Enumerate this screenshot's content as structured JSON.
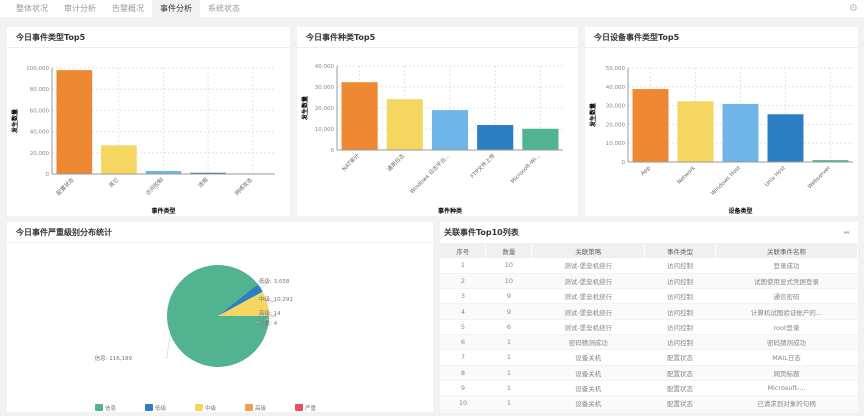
{
  "tabs": [
    "整体状况",
    "审计分析",
    "告警概况",
    "事件分析",
    "系统状态"
  ],
  "active_tab": 3,
  "charts": [
    {
      "title": "今日事件类型Top5",
      "type": "bar",
      "ylabel": "发生数量",
      "xlabel": "事件类型",
      "ylim": [
        0,
        100000
      ],
      "ticks": [
        0,
        20000,
        40000,
        60000,
        80000,
        100000
      ],
      "categories": [
        "配置状态",
        "其它",
        "访问控制",
        "违规",
        "网络攻击"
      ],
      "values": [
        98000,
        27000,
        2800,
        1200,
        100
      ],
      "colors": [
        "#ee8833",
        "#f5d660",
        "#6fb5e8",
        "#2d7fc4",
        "#52b391"
      ]
    },
    {
      "title": "今日事件种类Top5",
      "type": "bar",
      "ylabel": "发生数量",
      "xlabel": "事件种类",
      "ylim": [
        0,
        40000
      ],
      "ticks": [
        0,
        10000,
        20000,
        30000,
        40000
      ],
      "categories": [
        "NAT审计",
        "通用日志",
        "Windows 日志平台...",
        "FTP文件上传",
        "Microsoft-Wi..."
      ],
      "values": [
        32300,
        24200,
        19000,
        11900,
        10100
      ],
      "colors": [
        "#ee8833",
        "#f5d660",
        "#6fb5e8",
        "#2d7fc4",
        "#52b391"
      ]
    },
    {
      "title": "今日设备事件类型Top5",
      "type": "bar",
      "ylabel": "发生数量",
      "xlabel": "设备类型",
      "ylim": [
        0,
        50000
      ],
      "ticks": [
        0,
        10000,
        20000,
        30000,
        40000,
        50000
      ],
      "categories": [
        "App",
        "Network",
        "Windows Host",
        "Unix Host",
        "Webserver"
      ],
      "values": [
        38800,
        32300,
        30900,
        25400,
        1000
      ],
      "colors": [
        "#ee8833",
        "#f5d660",
        "#6fb5e8",
        "#2d7fc4",
        "#52b391"
      ]
    }
  ],
  "chart_data": [
    {
      "type": "pie",
      "title": "今日事件严重级别分布统计",
      "categories": [
        "信息",
        "低级",
        "中级",
        "高级",
        "严重"
      ],
      "values": [
        116189,
        3658,
        10291,
        14,
        4
      ],
      "colors": [
        "#52b391",
        "#2d7fc4",
        "#f5d660",
        "#f0a050",
        "#e8505b"
      ],
      "legend": "bottom"
    }
  ],
  "table": {
    "title": "关联事件Top10列表",
    "columns": [
      "序号",
      "数量",
      "关联策略",
      "事件类型",
      "关联事件名称"
    ],
    "rows": [
      [
        "1",
        "10",
        "测试-堡垒机绕行",
        "访问控制",
        "登录成功"
      ],
      [
        "2",
        "10",
        "测试-堡垒机绕行",
        "访问控制",
        "试图使用显式凭据登录"
      ],
      [
        "3",
        "9",
        "测试-堡垒机绕行",
        "访问控制",
        "通信密码"
      ],
      [
        "4",
        "9",
        "测试-堡垒机绕行",
        "访问控制",
        "计算机试图验证帐户的..."
      ],
      [
        "5",
        "6",
        "测试-堡垒机绕行",
        "访问控制",
        "root登录"
      ],
      [
        "6",
        "1",
        "密码猜测成功",
        "访问控制",
        "密码猜测成功"
      ],
      [
        "7",
        "1",
        "设备关机",
        "配置状态",
        "MAIL日志"
      ],
      [
        "8",
        "1",
        "设备关机",
        "配置状态",
        "网页标题"
      ],
      [
        "9",
        "1",
        "设备关机",
        "配置状态",
        "Microsoft-..."
      ],
      [
        "10",
        "1",
        "设备关机",
        "配置状态",
        "已请求到对象的句柄"
      ]
    ]
  }
}
